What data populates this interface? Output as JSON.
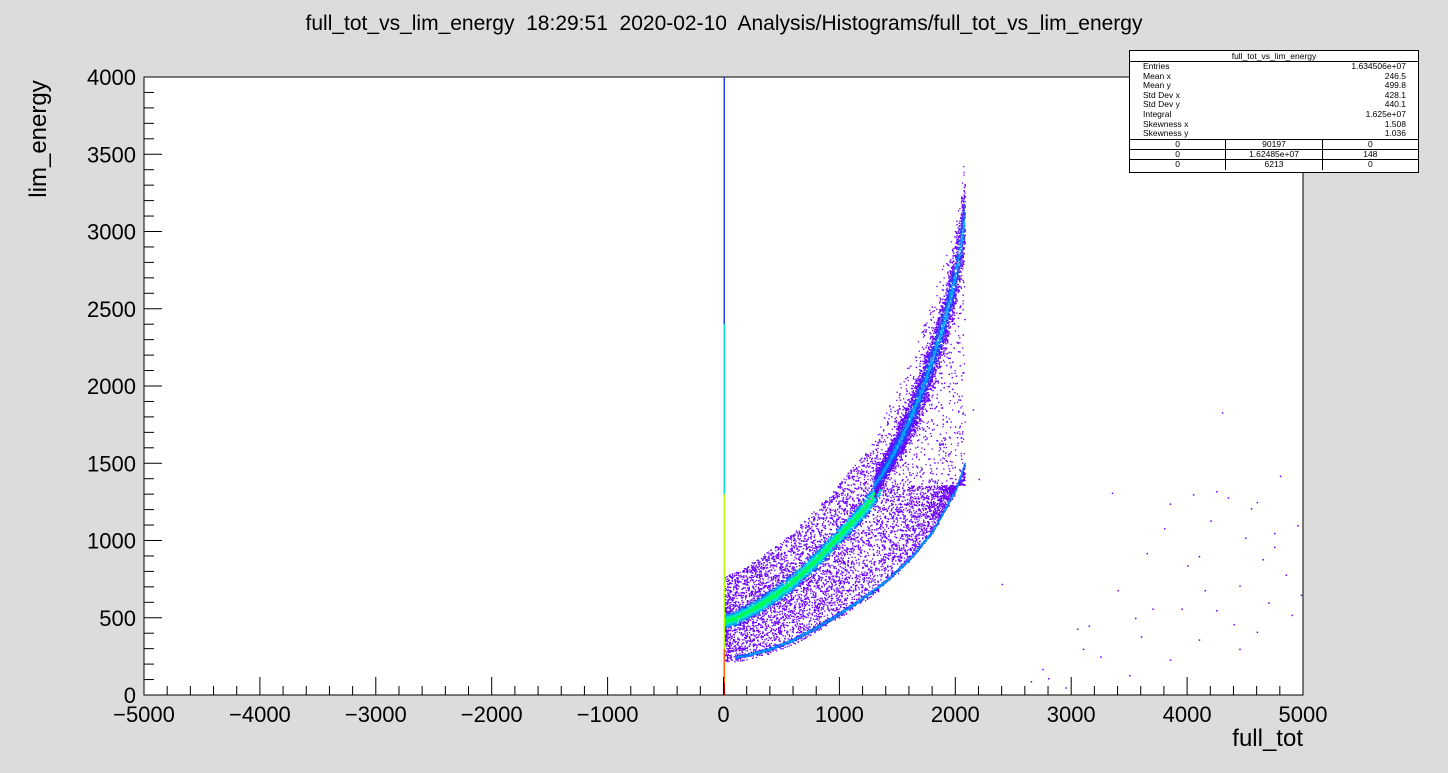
{
  "window": {
    "title": "full_tot_vs_lim_energy  18:29:51  2020-02-10  Analysis/Histograms/full_tot_vs_lim_energy"
  },
  "stats_box": {
    "title": "full_tot_vs_lim_energy",
    "rows": [
      {
        "label": "Entries",
        "value": "1.634506e+07"
      },
      {
        "label": "Mean x",
        "value": "246.5"
      },
      {
        "label": "Mean y",
        "value": "499.8"
      },
      {
        "label": "Std Dev x",
        "value": "428.1"
      },
      {
        "label": "Std Dev y",
        "value": "440.1"
      },
      {
        "label": "Integral",
        "value": "1.625e+07"
      },
      {
        "label": "Skewness x",
        "value": "1.508"
      },
      {
        "label": "Skewness y",
        "value": "1.036"
      }
    ],
    "overflow_table": [
      [
        "0",
        "90197",
        "0"
      ],
      [
        "0",
        "1.62485e+07",
        "148"
      ],
      [
        "0",
        "6213",
        "0"
      ]
    ]
  },
  "colors": {
    "background": "#dcdcdc",
    "frame": "#ffffff",
    "palette": [
      "#6a00ff",
      "#2b3cff",
      "#00a0ff",
      "#00e6c8",
      "#00ff50",
      "#b4ff00",
      "#ffd200",
      "#ff6400",
      "#c80000"
    ]
  },
  "chart_data": {
    "type": "heatmap",
    "title": "full_tot_vs_lim_energy  18:29:51  2020-02-10  Analysis/Histograms/full_tot_vs_lim_energy",
    "xlabel": "full_tot",
    "ylabel": "lim_energy",
    "xlim": [
      -5000,
      5000
    ],
    "ylim": [
      0,
      4000
    ],
    "x_ticks": [
      -5000,
      -4000,
      -3000,
      -2000,
      -1000,
      0,
      1000,
      2000,
      3000,
      4000,
      5000
    ],
    "x_tick_labels": [
      "−5000",
      "−4000",
      "−3000",
      "−2000",
      "−1000",
      "0",
      "1000",
      "2000",
      "3000",
      "4000",
      "5000"
    ],
    "y_ticks": [
      0,
      500,
      1000,
      1500,
      2000,
      2500,
      3000,
      3500,
      4000
    ],
    "y_tick_labels": [
      "0",
      "500",
      "1000",
      "1500",
      "2000",
      "2500",
      "3000",
      "3500",
      "4000"
    ],
    "grid": false,
    "legend": "none",
    "bands": [
      {
        "x": [
          0,
          100,
          200,
          300,
          400,
          500,
          600,
          700,
          800,
          900,
          1000,
          1100,
          1200,
          1300,
          1350
        ],
        "y": [
          480,
          500,
          540,
          580,
          630,
          680,
          740,
          810,
          880,
          960,
          1040,
          1120,
          1200,
          1300,
          1360
        ]
      },
      {
        "x": [
          1300,
          1400,
          1500,
          1600,
          1700,
          1800,
          1900,
          2000,
          2080
        ],
        "y": [
          1360,
          1480,
          1620,
          1780,
          1960,
          2180,
          2420,
          2720,
          3100
        ]
      },
      {
        "x": [
          100,
          200,
          400,
          600,
          800,
          1000,
          1200,
          1400,
          1600,
          1800,
          2000,
          2080
        ],
        "y": [
          250,
          260,
          300,
          360,
          440,
          530,
          630,
          740,
          880,
          1060,
          1330,
          1500
        ]
      }
    ],
    "vertical_line": {
      "x": 0,
      "y_range": [
        0,
        4000
      ]
    },
    "sparse_points": [
      [
        2400,
        720
      ],
      [
        2650,
        90
      ],
      [
        2800,
        110
      ],
      [
        2950,
        50
      ],
      [
        3050,
        430
      ],
      [
        3150,
        450
      ],
      [
        3350,
        1310
      ],
      [
        3600,
        380
      ],
      [
        3650,
        920
      ],
      [
        3700,
        560
      ],
      [
        3800,
        1080
      ],
      [
        3850,
        1240
      ],
      [
        3950,
        560
      ],
      [
        4000,
        840
      ],
      [
        4050,
        1300
      ],
      [
        4100,
        900
      ],
      [
        4150,
        680
      ],
      [
        4200,
        1130
      ],
      [
        4250,
        550
      ],
      [
        4300,
        1830
      ],
      [
        4350,
        1280
      ],
      [
        4400,
        460
      ],
      [
        4450,
        710
      ],
      [
        4500,
        1020
      ],
      [
        4550,
        1210
      ],
      [
        4600,
        410
      ],
      [
        4650,
        880
      ],
      [
        4700,
        600
      ],
      [
        4750,
        1050
      ],
      [
        4800,
        1420
      ],
      [
        4850,
        780
      ],
      [
        4900,
        520
      ],
      [
        4950,
        1100
      ],
      [
        4980,
        650
      ],
      [
        3500,
        130
      ],
      [
        3400,
        680
      ],
      [
        3250,
        250
      ],
      [
        2750,
        170
      ],
      [
        4250,
        1320
      ],
      [
        4600,
        1250
      ],
      [
        3100,
        300
      ],
      [
        3550,
        500
      ],
      [
        3850,
        230
      ],
      [
        4100,
        360
      ],
      [
        4450,
        300
      ],
      [
        4750,
        960
      ],
      [
        2200,
        1400
      ],
      [
        2150,
        1850
      ]
    ]
  }
}
